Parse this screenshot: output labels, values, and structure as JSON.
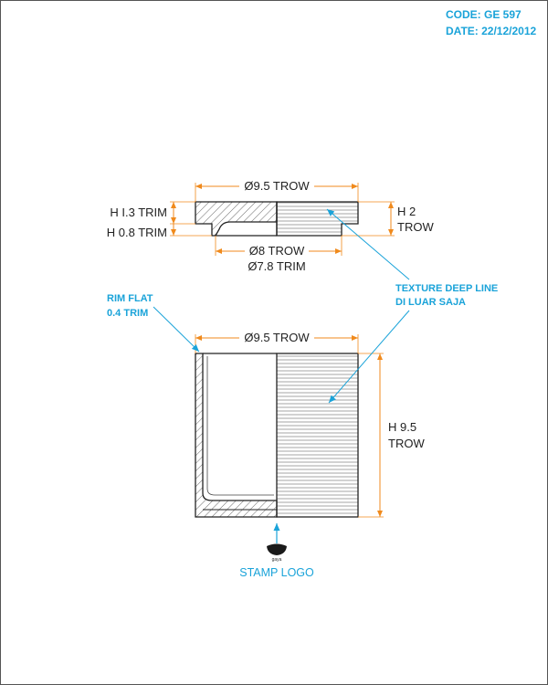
{
  "header": {
    "code": "CODE: GE 597",
    "date": "DATE: 22/12/2012"
  },
  "colors": {
    "dimension_line": "#f08a1c",
    "annotation": "#1aa3d9",
    "outline": "#222222",
    "border": "#555555"
  },
  "top_view": {
    "outer_diameter": "Ø9.5 TROW",
    "inner_diameter_1": "Ø8 TROW",
    "inner_diameter_2": "Ø7.8 TRIM",
    "height_trim_1": "H I.3 TRIM",
    "height_trim_2": "H 0.8 TRIM",
    "height_total_line1": "H 2",
    "height_total_line2": "TROW"
  },
  "front_view": {
    "diameter": "Ø9.5 TROW",
    "height_line1": "H 9.5",
    "height_line2": "TROW"
  },
  "annotations": {
    "texture_line1": "TEXTURE DEEP LINE",
    "texture_line2": "DI LUAR SAJA",
    "rim_line1": "RIM FLAT",
    "rim_line2": "0.4 TRIM",
    "stamp_brand": "gaya",
    "stamp_caption": "STAMP LOGO"
  }
}
